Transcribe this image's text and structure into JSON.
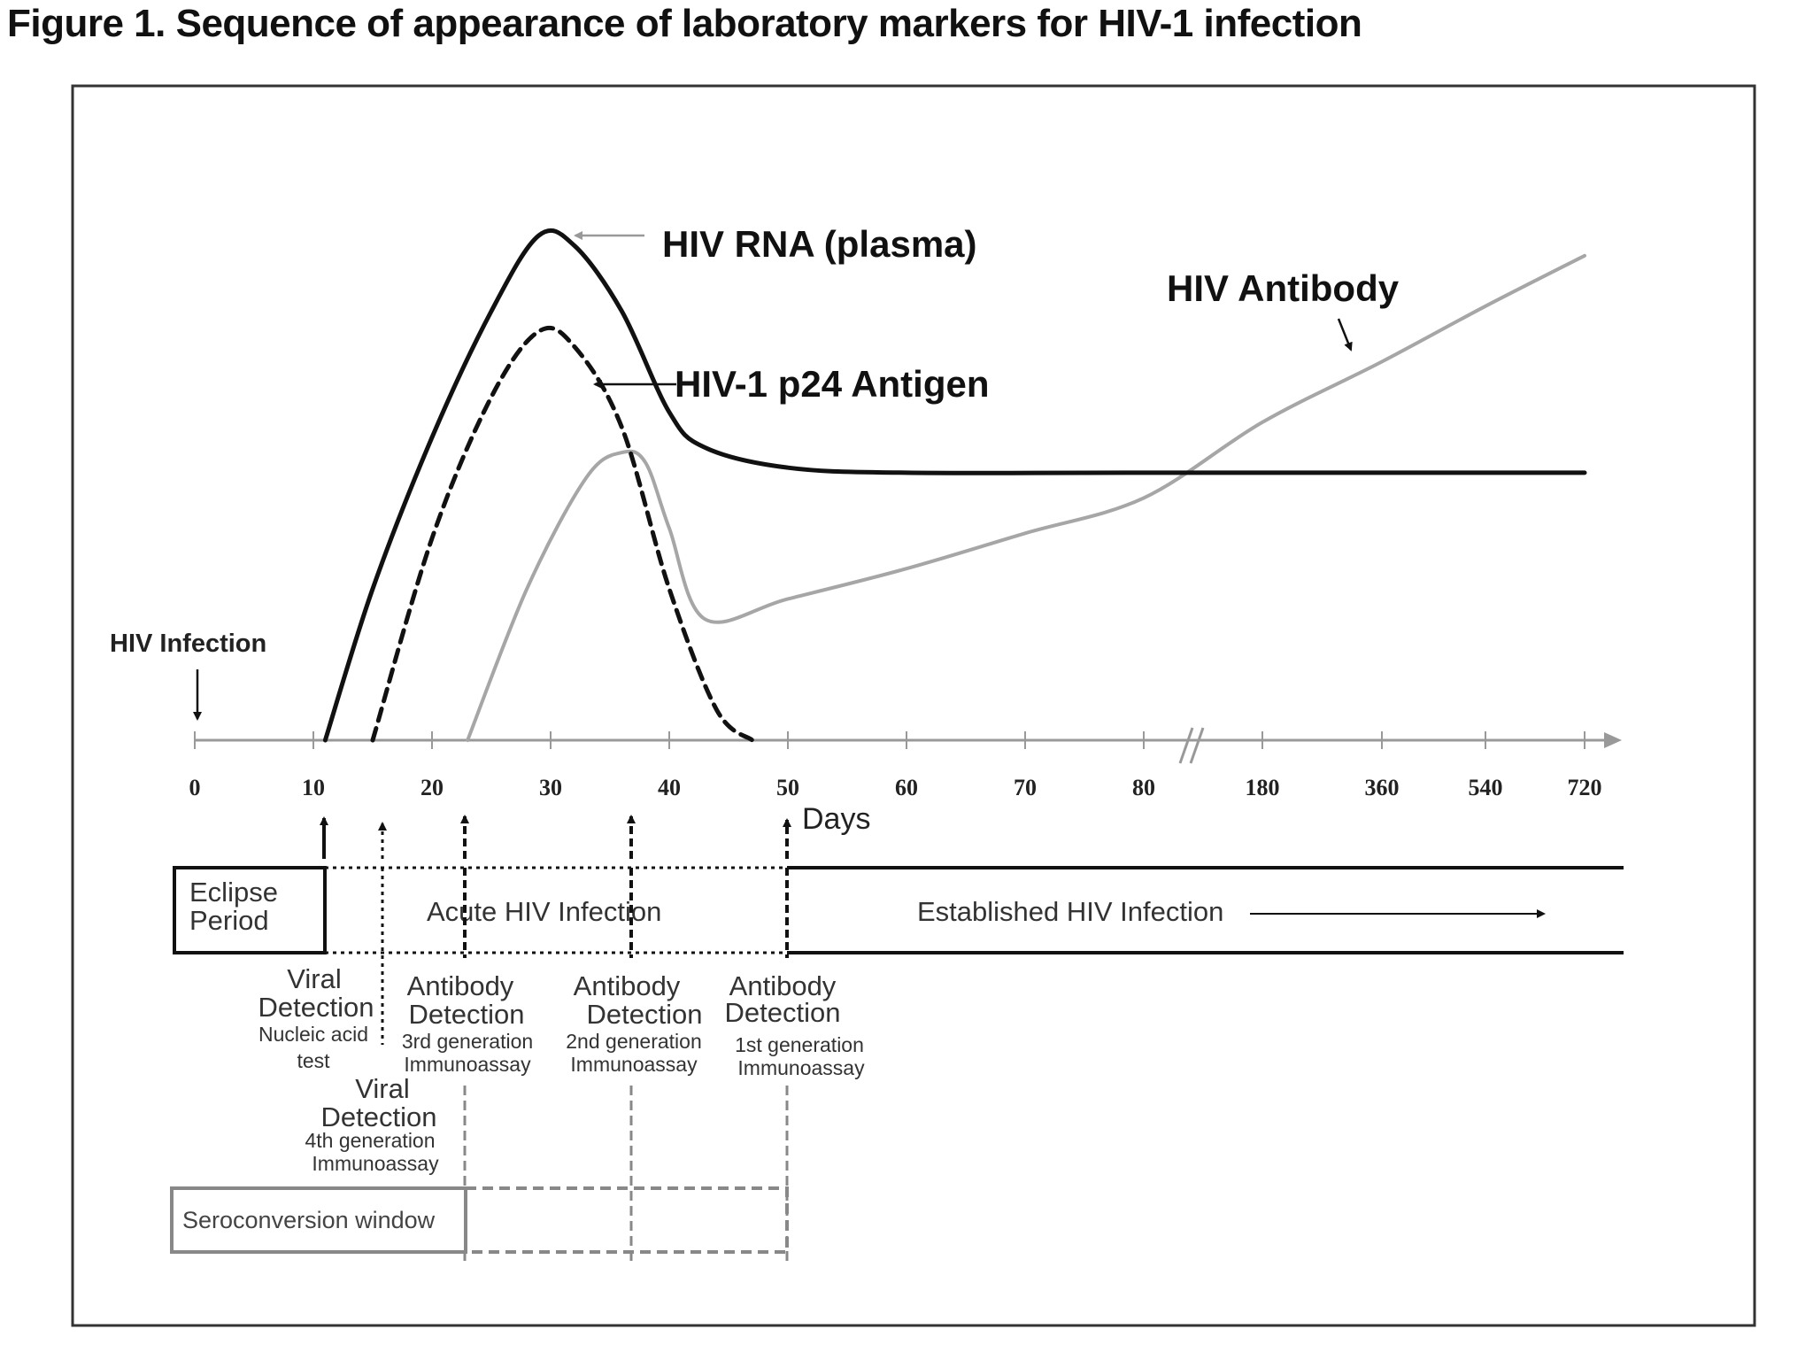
{
  "title": "Figure 1. Sequence of appearance of laboratory markers for HIV-1 infection",
  "chart_data": {
    "type": "line",
    "xlabel": "Days",
    "ylabel": "",
    "x_ticks": [
      "0",
      "10",
      "20",
      "30",
      "40",
      "50",
      "60",
      "70",
      "80",
      "180",
      "360",
      "540",
      "720"
    ],
    "axis_break_between": [
      "80",
      "180"
    ],
    "grid": false,
    "series": [
      {
        "name": "HIV RNA (plasma)",
        "style": "solid",
        "color": "#111111",
        "x": [
          11,
          15,
          20,
          25,
          29,
          32,
          36,
          40,
          43,
          50,
          60,
          80,
          720
        ],
        "y": [
          0,
          30,
          60,
          85,
          100,
          98,
          85,
          65,
          58,
          54,
          53,
          53,
          53
        ]
      },
      {
        "name": "HIV-1 p24 Antigen",
        "style": "dashed",
        "color": "#111111",
        "x": [
          15,
          20,
          25,
          29,
          32,
          36,
          40,
          44,
          47
        ],
        "y": [
          0,
          40,
          68,
          81,
          78,
          62,
          30,
          6,
          0
        ]
      },
      {
        "name": "HIV Antibody",
        "style": "solid",
        "color": "#a6a6a6",
        "x": [
          23,
          28,
          33,
          36,
          38,
          40,
          43,
          50,
          60,
          70,
          80,
          180,
          360,
          540,
          720
        ],
        "y": [
          0,
          30,
          52,
          57,
          55,
          42,
          24,
          28,
          34,
          41,
          48,
          63,
          75,
          86,
          96
        ]
      }
    ],
    "annotations": {
      "hiv_infection": "HIV Infection",
      "eclipse": "Eclipse Period",
      "acute": "Acute HIV Infection",
      "established": "Established HIV Infection",
      "seroconversion": "Seroconversion window",
      "viral_nat": {
        "title": "Viral Detection",
        "sub1": "Nucleic acid",
        "sub2": "test"
      },
      "viral_4th": {
        "title": "Viral Detection",
        "sub1": "4th generation",
        "sub2": "Immunoassay"
      },
      "ab_3rd": {
        "title": "Antibody Detection",
        "sub1": "3rd generation",
        "sub2": "Immunoassay"
      },
      "ab_2nd": {
        "title": "Antibody Detection",
        "sub1": "2nd generation",
        "sub2": "Immunoassay"
      },
      "ab_1st": {
        "title": "Antibody Detection",
        "sub1": "1st generation",
        "sub2": "Immunoassay"
      }
    }
  }
}
